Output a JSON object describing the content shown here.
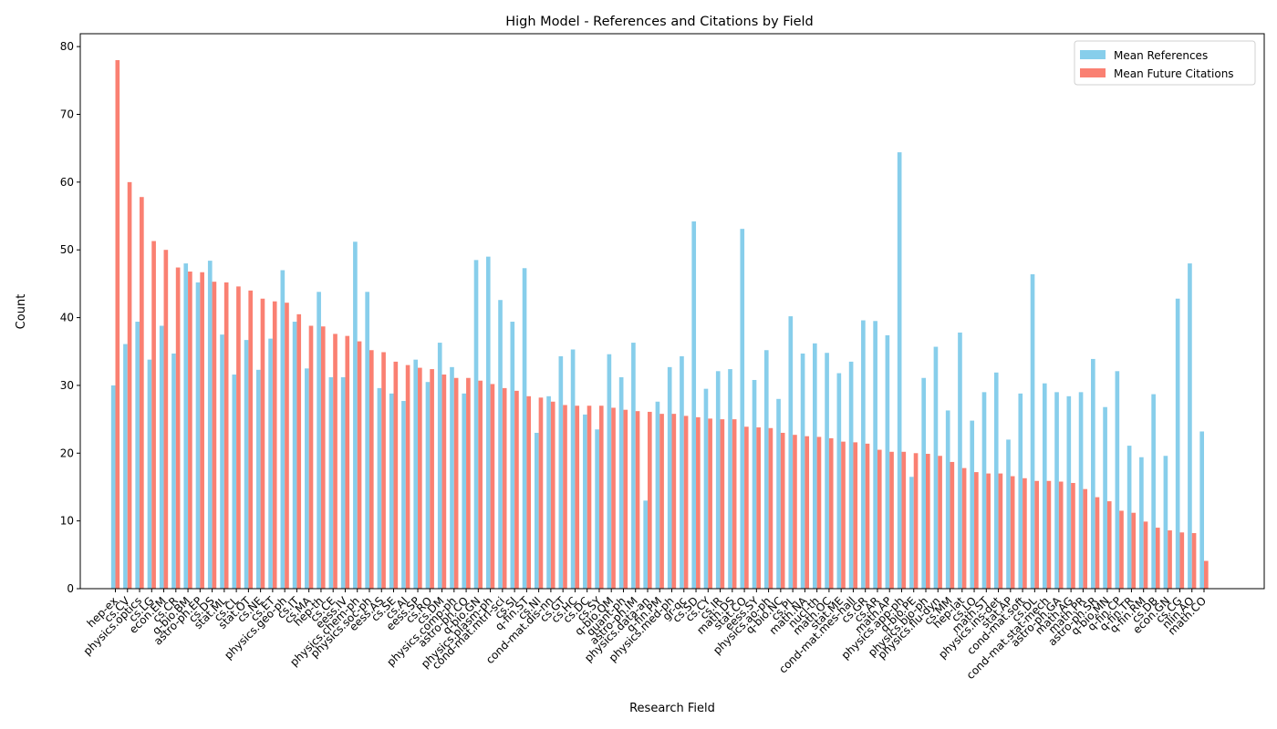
{
  "chart_data": {
    "type": "bar",
    "title": "High Model - References and Citations by Field",
    "xlabel": "Research Field",
    "ylabel": "Count",
    "categories": [
      "hep-ex",
      "cs.CV",
      "physics.optics",
      "cs.LG",
      "econ.EM",
      "cs.CR",
      "q-bio.BM",
      "astro-ph.EP",
      "cs.DS",
      "stat.ML",
      "cs.CL",
      "stat.OT",
      "cs.NE",
      "cs.ET",
      "physics.geo-ph",
      "cs.IT",
      "cs.MA",
      "hep-th",
      "cs.CE",
      "eess.IV",
      "physics.chem-ph",
      "physics.soc-ph",
      "eess.AS",
      "cs.SE",
      "cs.AI",
      "eess.SP",
      "cs.RO",
      "cs.DM",
      "physics.comp-ph",
      "astro-ph.CO",
      "q-bio.GN",
      "physics.plasm-ph",
      "cond-mat.mtrl-sci",
      "cs.SI",
      "q-fin.ST",
      "cs.NI",
      "cond-mat.dis-nn",
      "cs.GT",
      "cs.HC",
      "cs.DC",
      "cs.SY",
      "q-bio.QM",
      "quant-ph",
      "astro-ph.IM",
      "physics.data-an",
      "q-fin.PM",
      "physics.med-ph",
      "gr-qc",
      "cs.SD",
      "cs.CY",
      "cs.IR",
      "math.DS",
      "stat.CO",
      "eess.SY",
      "physics.ao-ph",
      "q-bio.NC",
      "cs.PL",
      "math.NA",
      "nucl-th",
      "math.OC",
      "stat.ME",
      "cond-mat.mes-hall",
      "cs.GR",
      "cs.AR",
      "math.AP",
      "physics.app-ph",
      "q-bio.PE",
      "physics.bio-ph",
      "physics.flu-dyn",
      "cs.MM",
      "hep-lat",
      "cs.LO",
      "math.ST",
      "physics.ins-det",
      "stat.AP",
      "cond-mat.soft",
      "cs.DL",
      "cond-mat.stat-mech",
      "astro-ph.GA",
      "math.AG",
      "math.PR",
      "astro-ph.SR",
      "q-bio.MN",
      "q-fin.CP",
      "q-fin.TR",
      "q-fin.RM",
      "cs.DB",
      "econ.GN",
      "cs.CG",
      "nlin.AO",
      "math.CO"
    ],
    "series": [
      {
        "name": "Mean References",
        "color": "#87ceeb",
        "values": [
          30,
          36.1,
          39.4,
          33.8,
          38.8,
          34.7,
          48,
          45.2,
          48.4,
          37.5,
          31.6,
          36.7,
          32.3,
          36.9,
          47,
          39.4,
          32.5,
          43.8,
          31.2,
          31.2,
          51.2,
          43.8,
          29.6,
          28.8,
          27.7,
          33.8,
          30.5,
          36.3,
          32.7,
          28.8,
          48.5,
          49,
          42.6,
          39.4,
          47.3,
          23,
          28.4,
          34.3,
          35.3,
          25.7,
          23.5,
          34.6,
          31.2,
          36.3,
          13,
          27.6,
          32.7,
          34.3,
          54.2,
          29.5,
          32.1,
          32.4,
          53.1,
          30.8,
          35.2,
          28,
          40.2,
          34.7,
          36.2,
          34.8,
          31.8,
          33.5,
          39.6,
          39.5,
          37.4,
          64.4,
          16.5,
          31.1,
          35.7,
          26.3,
          37.8,
          24.8,
          29,
          31.9,
          22,
          28.8,
          46.4,
          30.3,
          29,
          28.4,
          29,
          33.9,
          26.8,
          32.1,
          21.1,
          19.4,
          28.7,
          19.6,
          42.8,
          48,
          23.2
        ]
      },
      {
        "name": "Mean Future Citations",
        "color": "#fa8072",
        "values": [
          78,
          60,
          57.8,
          51.3,
          50,
          47.4,
          46.8,
          46.7,
          45.3,
          45.2,
          44.6,
          44,
          42.8,
          42.4,
          42.2,
          40.5,
          38.8,
          38.7,
          37.6,
          37.3,
          36.5,
          35.2,
          34.9,
          33.5,
          33,
          32.6,
          32.4,
          31.6,
          31.1,
          31.1,
          30.7,
          30.2,
          29.6,
          29.2,
          28.4,
          28.2,
          27.6,
          27.1,
          27,
          27,
          27,
          26.7,
          26.4,
          26.2,
          26.1,
          25.8,
          25.8,
          25.5,
          25.3,
          25.1,
          25,
          25,
          23.9,
          23.8,
          23.7,
          23,
          22.7,
          22.5,
          22.4,
          22.2,
          21.7,
          21.6,
          21.4,
          20.5,
          20.2,
          20.2,
          20,
          19.9,
          19.6,
          18.7,
          17.8,
          17.2,
          17,
          17,
          16.6,
          16.3,
          15.9,
          15.9,
          15.8,
          15.6,
          14.7,
          13.5,
          12.9,
          11.5,
          11.2,
          9.9,
          9,
          8.6,
          8.3,
          8.2,
          4.1
        ]
      }
    ],
    "ylim": [
      0,
      81.9
    ],
    "yticks": [
      0,
      10,
      20,
      30,
      40,
      50,
      60,
      70,
      80
    ],
    "legend": "upper right"
  }
}
